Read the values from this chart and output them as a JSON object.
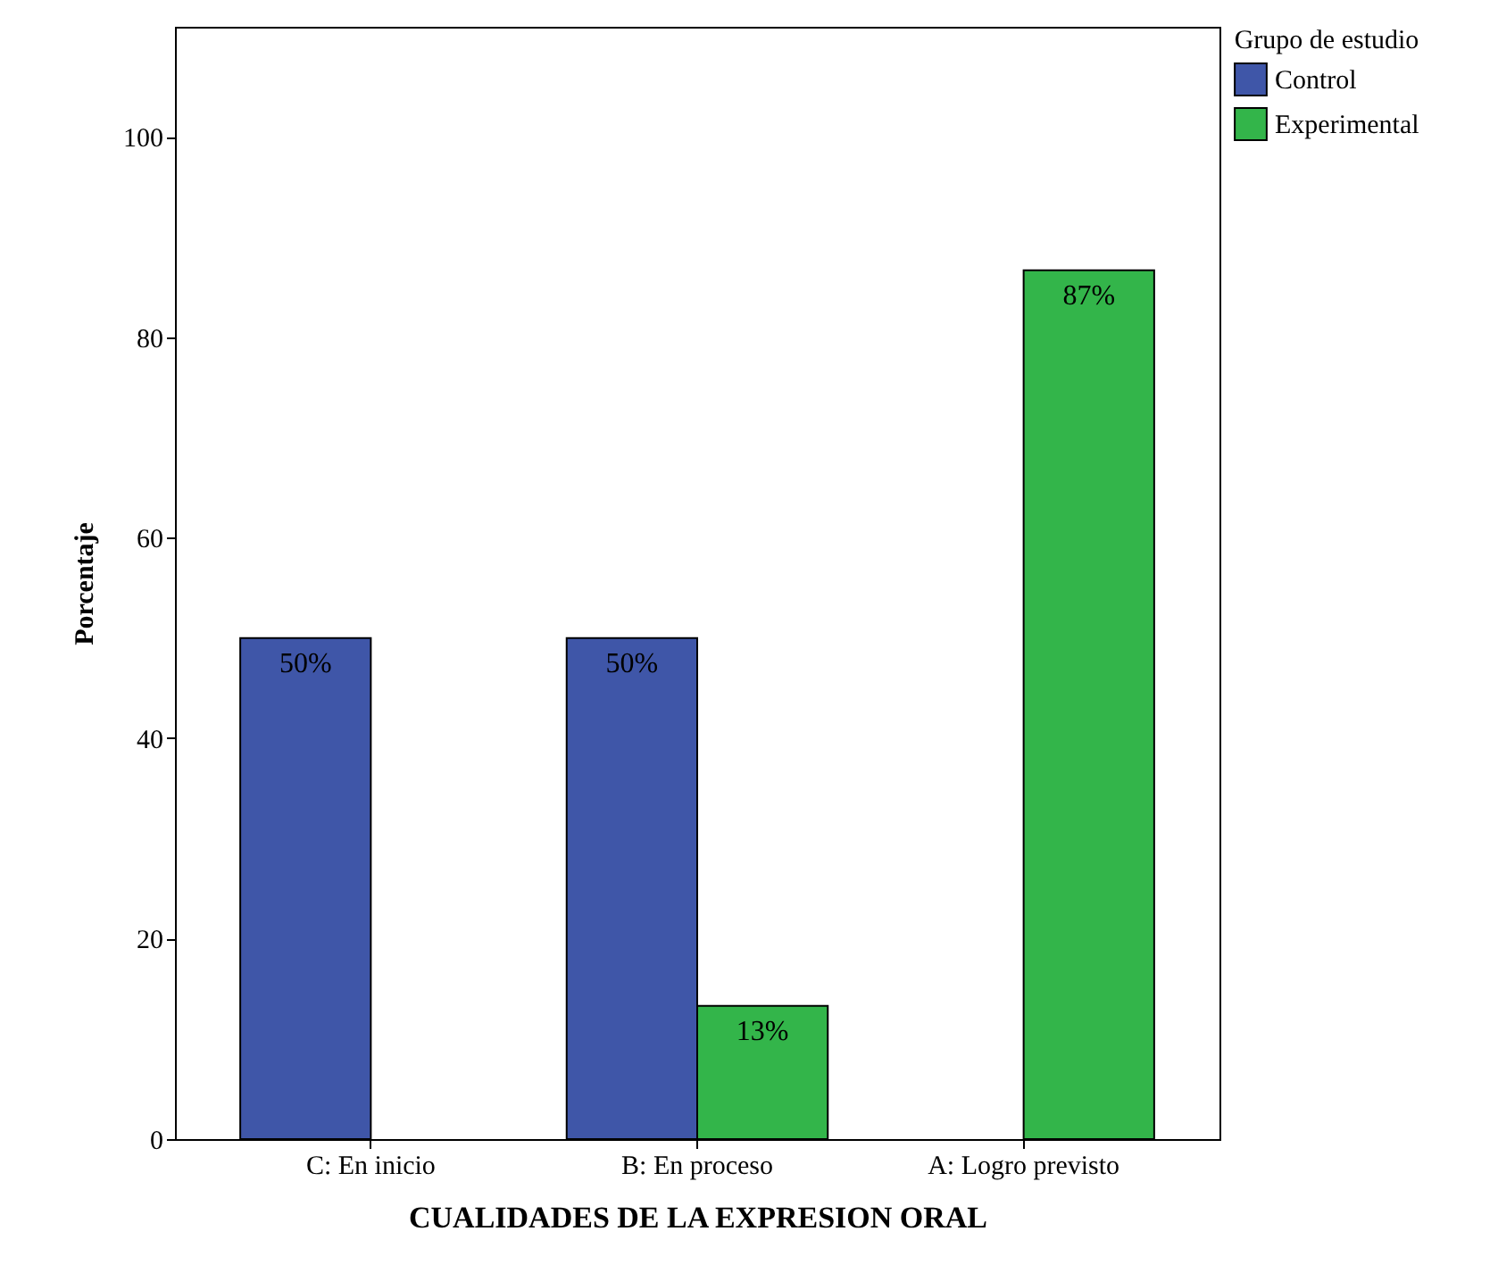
{
  "chart_data": {
    "type": "bar",
    "xlabel": "CUALIDADES DE LA EXPRESION ORAL",
    "ylabel": "Porcentaje",
    "legend_title": "Grupo de estudio",
    "categories": [
      "C: En inicio",
      "B: En proceso",
      "A: Logro previsto"
    ],
    "series": [
      {
        "name": "Control",
        "color": "#3f56a8",
        "values": [
          50,
          50,
          null
        ],
        "value_labels": [
          "50%",
          "50%",
          null
        ]
      },
      {
        "name": "Experimental",
        "color": "#33b54a",
        "values": [
          null,
          13.3,
          86.7
        ],
        "value_labels": [
          null,
          "13%",
          "87%"
        ]
      }
    ],
    "ylim": [
      0,
      111
    ],
    "yticks": [
      0,
      20,
      40,
      60,
      80,
      100
    ],
    "grid": false,
    "legend": "right"
  }
}
